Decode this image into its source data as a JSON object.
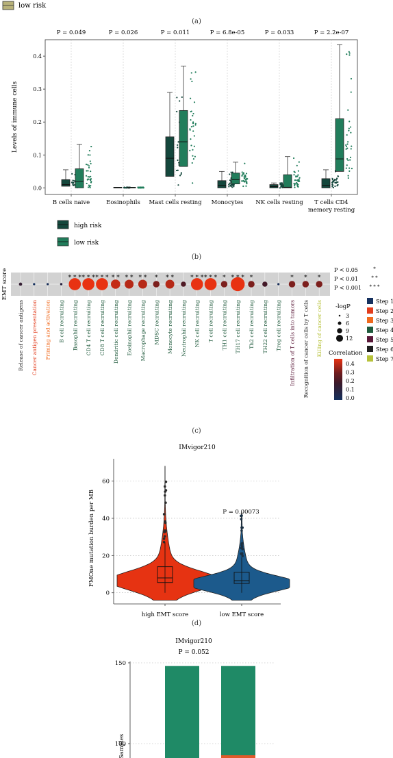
{
  "top_legend": {
    "label": "low risk",
    "color": "#b8b27a"
  },
  "panel_labels": [
    "(a)",
    "(b)",
    "(c)",
    "(d)"
  ],
  "chart_data": [
    {
      "type": "box",
      "panel": "b",
      "ylabel": "Levels of immune cells",
      "ylim": [
        -0.02,
        0.45
      ],
      "yticks": [
        "0.0",
        "0.1",
        "0.2",
        "0.3",
        "0.4"
      ],
      "categories": [
        "B cells naive",
        "Eosinophils",
        "Mast cells resting",
        "Monocytes",
        "NK cells resting",
        "T cells CD4 memory resting"
      ],
      "pvalues": [
        "P = 0.049",
        "P = 0.026",
        "P = 0.011",
        "P = 6.8e-05",
        "P = 0.033",
        "P = 2.2e-07"
      ],
      "legend": [
        {
          "name": "high risk",
          "color": "#14473c"
        },
        {
          "name": "low risk",
          "color": "#217d5b"
        }
      ],
      "series": [
        {
          "name": "high risk",
          "boxes": [
            {
              "q1": 0.005,
              "med": 0.01,
              "q3": 0.025,
              "max": 0.055
            },
            {
              "q1": 0.0,
              "med": 0.0,
              "q3": 0.002,
              "max": 0.002
            },
            {
              "q1": 0.035,
              "med": 0.09,
              "q3": 0.155,
              "max": 0.29
            },
            {
              "q1": 0.0,
              "med": 0.008,
              "q3": 0.022,
              "max": 0.05
            },
            {
              "q1": 0.0,
              "med": 0.004,
              "q3": 0.01,
              "max": 0.015
            },
            {
              "q1": 0.0,
              "med": 0.008,
              "q3": 0.028,
              "max": 0.055
            }
          ]
        },
        {
          "name": "low risk",
          "boxes": [
            {
              "q1": 0.0,
              "med": 0.02,
              "q3": 0.058,
              "max": 0.132
            },
            {
              "q1": 0.0,
              "med": 0.0,
              "q3": 0.002,
              "max": 0.002
            },
            {
              "q1": 0.065,
              "med": 0.14,
              "q3": 0.235,
              "max": 0.37
            },
            {
              "q1": 0.012,
              "med": 0.025,
              "q3": 0.045,
              "max": 0.078
            },
            {
              "q1": 0.0,
              "med": 0.002,
              "q3": 0.04,
              "max": 0.095
            },
            {
              "q1": 0.05,
              "med": 0.088,
              "q3": 0.21,
              "max": 0.435
            }
          ]
        }
      ]
    },
    {
      "type": "dot",
      "panel": "c",
      "row_label": "EMT score",
      "steps_legend": [
        {
          "name": "Step 1",
          "color": "#15305e"
        },
        {
          "name": "Step 2",
          "color": "#e23c1c"
        },
        {
          "name": "Step 3",
          "color": "#f06a1e"
        },
        {
          "name": "Step 4",
          "color": "#1f5a3c"
        },
        {
          "name": "Step 5",
          "color": "#5a1838"
        },
        {
          "name": "Step 6",
          "color": "#1e1e1e"
        },
        {
          "name": "Step 7",
          "color": "#b7c23a"
        }
      ],
      "significance_legend": [
        {
          "label": "P < 0.05",
          "stars": "*"
        },
        {
          "label": "P < 0.01",
          "stars": "* *"
        },
        {
          "label": "P < 0.001",
          "stars": "* * *"
        }
      ],
      "size_legend": {
        "title": "-logP",
        "values": [
          3,
          6,
          9,
          12
        ]
      },
      "color_legend": {
        "title": "Correlation",
        "ticks": [
          "0.4",
          "0.3",
          "0.2",
          "0.1",
          "0.0"
        ],
        "range": [
          0.0,
          0.45
        ]
      },
      "items": [
        {
          "label": "Release of cancer antigens",
          "step": 6,
          "corr": 0.15,
          "logp": 3.5,
          "stars": ""
        },
        {
          "label": "Cancer antigen presentation",
          "step": 2,
          "corr": 0.0,
          "logp": 1,
          "stars": ""
        },
        {
          "label": "Priming and activation",
          "step": 3,
          "corr": 0.02,
          "logp": 1.3,
          "stars": ""
        },
        {
          "label": "B cell recruiting",
          "step": 4,
          "corr": 0.1,
          "logp": 2.5,
          "stars": ""
        },
        {
          "label": "Basophil recruiting",
          "step": 4,
          "corr": 0.45,
          "logp": 13,
          "stars": "***"
        },
        {
          "label": "CD4 T cell recruiting",
          "step": 4,
          "corr": 0.45,
          "logp": 13,
          "stars": "***"
        },
        {
          "label": "CD8 T cell recruiting",
          "step": 4,
          "corr": 0.45,
          "logp": 13,
          "stars": "***"
        },
        {
          "label": "Dendritic cell recruiting",
          "step": 4,
          "corr": 0.4,
          "logp": 10,
          "stars": "**"
        },
        {
          "label": "Eosinophil recruiting",
          "step": 4,
          "corr": 0.38,
          "logp": 9.5,
          "stars": "**"
        },
        {
          "label": "Macrophage recruiting",
          "step": 4,
          "corr": 0.38,
          "logp": 9.5,
          "stars": "**"
        },
        {
          "label": "MDSC recruiting",
          "step": 4,
          "corr": 0.3,
          "logp": 7,
          "stars": "*"
        },
        {
          "label": "Monocyte recruiting",
          "step": 4,
          "corr": 0.38,
          "logp": 9.5,
          "stars": "**"
        },
        {
          "label": "Neutrophil recruiting",
          "step": 4,
          "corr": 0.22,
          "logp": 5.5,
          "stars": ""
        },
        {
          "label": "NK cell recruiting",
          "step": 4,
          "corr": 0.45,
          "logp": 13,
          "stars": "***"
        },
        {
          "label": "T cell recruiting",
          "step": 4,
          "corr": 0.45,
          "logp": 13,
          "stars": "***"
        },
        {
          "label": "TH1 cell recruiting",
          "step": 4,
          "corr": 0.3,
          "logp": 7,
          "stars": "*"
        },
        {
          "label": "TH17 cell recruiting",
          "step": 4,
          "corr": 0.45,
          "logp": 15,
          "stars": "***"
        },
        {
          "label": "Th2 cell recruiting",
          "step": 4,
          "corr": 0.3,
          "logp": 7,
          "stars": "*"
        },
        {
          "label": "TH22 cell recruiting",
          "step": 4,
          "corr": 0.2,
          "logp": 5.5,
          "stars": ""
        },
        {
          "label": "Treg cell recruiting",
          "step": 4,
          "corr": 0.02,
          "logp": 1.3,
          "stars": ""
        },
        {
          "label": "Infiltration of T cells into tumors",
          "step": 5,
          "corr": 0.3,
          "logp": 7,
          "stars": "*"
        },
        {
          "label": "Recognition of cancer cells by T cells",
          "step": 6,
          "corr": 0.3,
          "logp": 7,
          "stars": "*"
        },
        {
          "label": "Killing of cancer cells",
          "step": 7,
          "corr": 0.3,
          "logp": 7,
          "stars": "*"
        }
      ]
    },
    {
      "type": "violin",
      "panel": "d",
      "title": "IMvigor210",
      "ylabel": "FMOne mutation burden per MB",
      "ylim": [
        -6,
        72
      ],
      "yticks": [
        0,
        20,
        40,
        60
      ],
      "categories": [
        "high EMT score",
        "low EMT score"
      ],
      "pvalue": "P = 0.00073",
      "groups": [
        {
          "name": "high EMT score",
          "color": "#e63312",
          "q1": 5.5,
          "med": 8,
          "q3": 14,
          "lo": 0,
          "hi": 27,
          "max": 68
        },
        {
          "name": "low EMT score",
          "color": "#1c5a8c",
          "q1": 5,
          "med": 6.5,
          "q3": 11,
          "lo": 0,
          "hi": 19,
          "max": 43
        }
      ]
    },
    {
      "type": "bar",
      "panel": "e",
      "title": "IMvigor210",
      "subtitle": "P = 0.052",
      "ylabel": "Samples",
      "yticks": [
        100,
        150
      ],
      "ylim": [
        0,
        150
      ],
      "series": [
        {
          "color": "#1f8a66",
          "values": [
            148,
            148
          ]
        },
        {
          "color": "#e05a2a",
          "values": [
            0,
            2
          ]
        }
      ]
    }
  ]
}
